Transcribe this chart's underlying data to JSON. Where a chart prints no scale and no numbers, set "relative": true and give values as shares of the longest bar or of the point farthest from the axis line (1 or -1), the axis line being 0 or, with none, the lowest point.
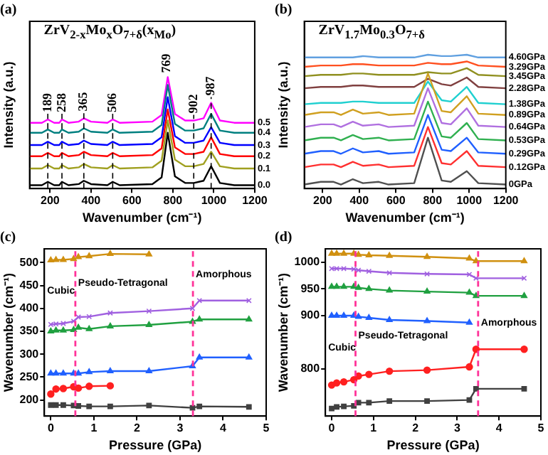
{
  "chart_data": [
    {
      "type": "line",
      "title": "(a)",
      "subtitle": "ZrV$_{2-x}$Mo$_{x}$O$_{7+δ}$(x$_{Mo}$)",
      "xlabel": "Wavenumber (cm⁻¹)",
      "ylabel": "Intensity (a.u.)",
      "relative": true,
      "xlim": [
        100,
        1200
      ],
      "xticks": [
        200,
        400,
        600,
        800,
        1000,
        1200
      ],
      "marker": "none",
      "x": [
        100,
        160,
        189,
        220,
        245,
        258,
        290,
        340,
        365,
        400,
        480,
        506,
        540,
        700,
        745,
        775,
        810,
        860,
        902,
        950,
        987,
        1030,
        1100,
        1200
      ],
      "series": [
        {
          "name": "0.0",
          "color": "#000000",
          "values": [
            0.03,
            0.03,
            0.06,
            0.03,
            0.03,
            0.06,
            0.03,
            0.04,
            0.07,
            0.04,
            0.03,
            0.06,
            0.03,
            0.04,
            0.1,
            0.5,
            0.11,
            0.05,
            0.05,
            0.07,
            0.2,
            0.05,
            0.03,
            0.03
          ]
        },
        {
          "name": "0.1",
          "color": "#a0a020",
          "values": [
            0.18,
            0.18,
            0.21,
            0.18,
            0.18,
            0.21,
            0.18,
            0.19,
            0.22,
            0.19,
            0.18,
            0.21,
            0.18,
            0.19,
            0.25,
            0.61,
            0.26,
            0.2,
            0.2,
            0.22,
            0.33,
            0.2,
            0.18,
            0.18
          ]
        },
        {
          "name": "0.2",
          "color": "#ff0000",
          "values": [
            0.29,
            0.29,
            0.32,
            0.29,
            0.29,
            0.32,
            0.29,
            0.3,
            0.33,
            0.3,
            0.29,
            0.32,
            0.29,
            0.3,
            0.36,
            0.71,
            0.37,
            0.31,
            0.31,
            0.33,
            0.46,
            0.31,
            0.29,
            0.29
          ]
        },
        {
          "name": "0.3",
          "color": "#0000ff",
          "values": [
            0.39,
            0.39,
            0.42,
            0.39,
            0.39,
            0.42,
            0.39,
            0.4,
            0.43,
            0.4,
            0.39,
            0.42,
            0.39,
            0.4,
            0.46,
            0.82,
            0.47,
            0.41,
            0.41,
            0.43,
            0.55,
            0.41,
            0.39,
            0.39
          ]
        },
        {
          "name": "0.4",
          "color": "#008080",
          "values": [
            0.5,
            0.5,
            0.53,
            0.5,
            0.5,
            0.53,
            0.5,
            0.51,
            0.54,
            0.51,
            0.5,
            0.53,
            0.5,
            0.51,
            0.57,
            0.93,
            0.58,
            0.52,
            0.52,
            0.54,
            0.67,
            0.52,
            0.5,
            0.5
          ]
        },
        {
          "name": "0.5",
          "color": "#ff00ff",
          "values": [
            0.59,
            0.59,
            0.62,
            0.59,
            0.59,
            0.62,
            0.59,
            0.6,
            0.63,
            0.6,
            0.59,
            0.62,
            0.59,
            0.6,
            0.66,
            1,
            0.67,
            0.61,
            0.61,
            0.63,
            0.77,
            0.61,
            0.59,
            0.59
          ]
        }
      ],
      "ref_lines": [
        {
          "axis": "x",
          "value": 189,
          "label": "189",
          "line_style": "dashed",
          "color": "#000000"
        },
        {
          "axis": "x",
          "value": 258,
          "label": "258",
          "line_style": "dashed",
          "color": "#000000"
        },
        {
          "axis": "x",
          "value": 365,
          "label": "365",
          "line_style": "dashed",
          "color": "#000000"
        },
        {
          "axis": "x",
          "value": 506,
          "label": "506",
          "line_style": "dashed",
          "color": "#000000"
        },
        {
          "axis": "x",
          "value": 902,
          "label": "902",
          "line_style": "dashed",
          "color": "#000000"
        },
        {
          "axis": "x",
          "value": 987,
          "label": "987",
          "line_style": "dashed",
          "color": "#000000"
        }
      ],
      "annotations": [
        {
          "text": "769",
          "x": 769,
          "y": 1
        }
      ]
    },
    {
      "type": "line",
      "title": "(b)",
      "subtitle": "ZrV$_{1.7}$Mo$_{0.3}$O$_{7+δ}$",
      "xlabel": "Wavenumber (cm⁻¹)",
      "ylabel": "Intensity (a.u.)",
      "relative": true,
      "xlim": [
        100,
        1200
      ],
      "xticks": [
        200,
        400,
        600,
        800,
        1000,
        1200
      ],
      "marker": "none",
      "x": [
        100,
        190,
        260,
        300,
        365,
        420,
        506,
        560,
        700,
        775,
        850,
        900,
        987,
        1050,
        1200
      ],
      "series": [
        {
          "name": "0GPa",
          "color": "#505050",
          "values": [
            0.03,
            0.05,
            0.05,
            0.03,
            0.07,
            0.04,
            0.05,
            0.03,
            0.04,
            0.38,
            0.06,
            0.05,
            0.13,
            0.04,
            0.03
          ]
        },
        {
          "name": "0.12GPa",
          "color": "#ff3030",
          "values": [
            0.16,
            0.18,
            0.18,
            0.16,
            0.2,
            0.17,
            0.18,
            0.16,
            0.17,
            0.46,
            0.19,
            0.18,
            0.28,
            0.17,
            0.16
          ]
        },
        {
          "name": "0.29GPa",
          "color": "#2060ff",
          "values": [
            0.26,
            0.28,
            0.28,
            0.26,
            0.3,
            0.27,
            0.28,
            0.26,
            0.27,
            0.55,
            0.29,
            0.28,
            0.38,
            0.27,
            0.26
          ]
        },
        {
          "name": "0.53GPa",
          "color": "#30b050",
          "values": [
            0.36,
            0.38,
            0.38,
            0.36,
            0.4,
            0.37,
            0.38,
            0.36,
            0.37,
            0.65,
            0.39,
            0.38,
            0.49,
            0.37,
            0.36
          ]
        },
        {
          "name": "0.64GPa",
          "color": "#b070e0",
          "values": [
            0.46,
            0.48,
            0.48,
            0.46,
            0.5,
            0.47,
            0.48,
            0.46,
            0.47,
            0.75,
            0.49,
            0.48,
            0.6,
            0.47,
            0.46
          ]
        },
        {
          "name": "0.89GPa",
          "color": "#d0a020",
          "values": [
            0.55,
            0.57,
            0.57,
            0.55,
            0.59,
            0.56,
            0.57,
            0.55,
            0.56,
            0.86,
            0.58,
            0.57,
            0.69,
            0.56,
            0.55
          ]
        },
        {
          "name": "1.38GPa",
          "color": "#20d0d0",
          "values": [
            0.63,
            0.64,
            0.64,
            0.64,
            0.65,
            0.65,
            0.64,
            0.64,
            0.64,
            0.8,
            0.66,
            0.65,
            0.76,
            0.64,
            0.63
          ]
        },
        {
          "name": "2.28GPa",
          "color": "#804040",
          "values": [
            0.75,
            0.76,
            0.76,
            0.76,
            0.77,
            0.77,
            0.76,
            0.76,
            0.76,
            0.82,
            0.78,
            0.77,
            0.83,
            0.76,
            0.75
          ]
        },
        {
          "name": "3.45GPa",
          "color": "#909020",
          "values": [
            0.84,
            0.85,
            0.85,
            0.85,
            0.86,
            0.86,
            0.85,
            0.85,
            0.85,
            0.87,
            0.86,
            0.86,
            0.9,
            0.85,
            0.84
          ]
        },
        {
          "name": "3.29GPa",
          "color": "#ff5020",
          "values": [
            0.91,
            0.92,
            0.92,
            0.92,
            0.93,
            0.93,
            0.92,
            0.92,
            0.92,
            0.94,
            0.93,
            0.93,
            0.95,
            0.92,
            0.91
          ]
        },
        {
          "name": "4.60GPa",
          "color": "#60a0e0",
          "values": [
            0.98,
            0.98,
            0.98,
            0.98,
            0.98,
            0.99,
            0.98,
            0.98,
            0.98,
            1,
            0.99,
            0.99,
            1,
            0.98,
            0.98
          ]
        }
      ]
    },
    {
      "type": "line",
      "title": "(c)",
      "xlabel": "Pressure (GPa)",
      "ylabel": "Wavenumber (cm⁻¹)",
      "xlim": [
        -0.15,
        5
      ],
      "xticks": [
        0,
        1,
        2,
        3,
        4,
        5
      ],
      "ylim": [
        165,
        530
      ],
      "yticks": [
        200,
        250,
        300,
        350,
        400,
        450,
        500
      ],
      "x": [
        0,
        0.12,
        0.29,
        0.53,
        0.64,
        0.89,
        1.38,
        2.28,
        3.29,
        3.45,
        4.6
      ],
      "series": [
        {
          "color": "#404040",
          "marker": "square",
          "values": [
            189,
            189,
            189,
            188,
            187,
            186,
            186,
            188,
            183,
            186,
            185
          ]
        },
        {
          "color": "#ff2020",
          "marker": "circle",
          "x": [
            0,
            0.12,
            0.29,
            0.53,
            0.64,
            0.89,
            1.38
          ],
          "values": [
            213,
            224,
            225,
            229,
            226,
            230,
            231
          ]
        },
        {
          "color": "#2060ff",
          "marker": "triangle",
          "values": [
            258,
            258,
            258,
            258,
            258,
            261,
            263,
            263,
            274,
            293,
            293
          ]
        },
        {
          "color": "#20a040",
          "marker": "triangle",
          "values": [
            350,
            352,
            352,
            353,
            358,
            355,
            361,
            364,
            371,
            376,
            376
          ]
        },
        {
          "color": "#a060e0",
          "marker": "cross",
          "values": [
            365,
            366,
            367,
            372,
            381,
            382,
            390,
            394,
            400,
            417,
            417
          ]
        },
        {
          "color": "#d09010",
          "marker": "triangle",
          "x": [
            0,
            0.12,
            0.29,
            0.53,
            0.64,
            0.89,
            1.38,
            2.28
          ],
          "values": [
            505,
            506,
            506,
            508,
            512,
            514,
            519,
            518
          ]
        }
      ],
      "ref_lines": [
        {
          "axis": "x",
          "value": 0.57,
          "color": "#ff3399",
          "line_style": "dashed"
        },
        {
          "axis": "x",
          "value": 3.3,
          "color": "#ff3399",
          "line_style": "dashed"
        }
      ],
      "annotations": [
        "Cubic",
        "Pseudo-Tetragonal",
        "Amorphous"
      ]
    },
    {
      "type": "line",
      "title": "(d)",
      "xlabel": "Pressure (GPa)",
      "ylabel": "Wavenumber (cm⁻¹)",
      "xlim": [
        -0.15,
        5
      ],
      "xticks": [
        0,
        1,
        2,
        3,
        4,
        5
      ],
      "ylim": [
        712,
        1025
      ],
      "yticks": [
        800,
        900,
        950,
        1000
      ],
      "x": [
        0,
        0.12,
        0.29,
        0.53,
        0.64,
        0.89,
        1.38,
        2.28,
        3.29,
        3.45,
        4.6
      ],
      "series": [
        {
          "color": "#d09010",
          "marker": "triangle",
          "values": [
            1016,
            1016,
            1016,
            1016,
            1014,
            1013,
            1012,
            1010,
            1007,
            1002,
            1002
          ]
        },
        {
          "color": "#a060e0",
          "marker": "cross",
          "values": [
            988,
            988,
            988,
            987,
            985,
            983,
            980,
            978,
            977,
            970,
            970
          ]
        },
        {
          "color": "#20a040",
          "marker": "triangle",
          "values": [
            954,
            954,
            954,
            954,
            952,
            950,
            947,
            945,
            943,
            937,
            937
          ]
        },
        {
          "color": "#2060ff",
          "marker": "triangle",
          "x": [
            0,
            0.12,
            0.29,
            0.53,
            0.64,
            0.89,
            1.38,
            2.28,
            3.29
          ],
          "values": [
            900,
            900,
            900,
            900,
            898,
            896,
            892,
            890,
            887
          ]
        },
        {
          "color": "#ff2020",
          "marker": "circle",
          "values": [
            770,
            774,
            776,
            780,
            787,
            790,
            796,
            798,
            804,
            837,
            837
          ]
        },
        {
          "color": "#404040",
          "marker": "square",
          "values": [
            726,
            729,
            730,
            731,
            737,
            737,
            740,
            740,
            742,
            763,
            763
          ]
        }
      ],
      "ref_lines": [
        {
          "axis": "x",
          "value": 0.57,
          "color": "#ff3399",
          "line_style": "dashed"
        },
        {
          "axis": "x",
          "value": 3.5,
          "color": "#ff3399",
          "line_style": "dashed"
        }
      ],
      "annotations": [
        "Cubic",
        "Pseudo-Tetragonal",
        "Amorphous"
      ]
    }
  ]
}
